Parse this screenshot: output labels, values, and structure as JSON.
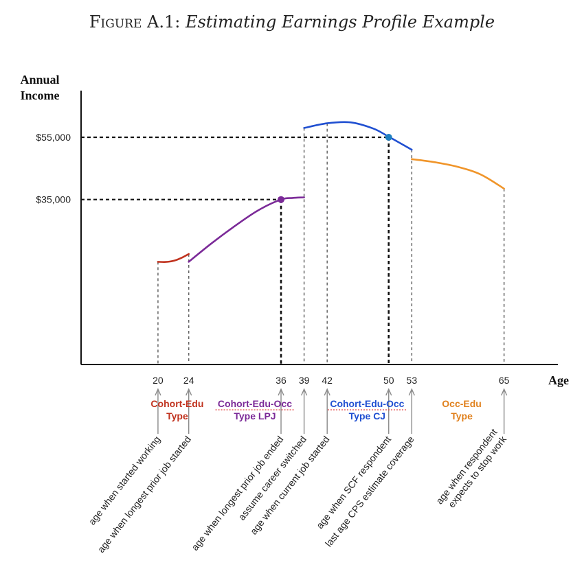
{
  "title": {
    "label": "Figure A.1:",
    "caption": "Estimating Earnings Profile Example"
  },
  "chart_data": {
    "type": "line",
    "ylabel_line1": "Annual",
    "ylabel_line2": "Income",
    "xlabel": "Age",
    "xlim": [
      10,
      72
    ],
    "ylim": [
      -18000,
      70000
    ],
    "x_ticks": [
      20,
      24,
      36,
      39,
      42,
      50,
      53,
      65
    ],
    "y_ticks": [
      {
        "value": 35000,
        "label": "$35,000"
      },
      {
        "value": 55000,
        "label": "$55,000"
      }
    ],
    "series": [
      {
        "color": "#c0321e",
        "points": [
          [
            20,
            15000
          ],
          [
            21,
            14950
          ],
          [
            22,
            15300
          ],
          [
            23,
            16200
          ],
          [
            24,
            17500
          ]
        ]
      },
      {
        "color": "#7b2a98",
        "points": [
          [
            24,
            15000
          ],
          [
            27,
            21000
          ],
          [
            30,
            26500
          ],
          [
            33,
            31500
          ],
          [
            36,
            35000
          ],
          [
            37.5,
            35500
          ],
          [
            39,
            35700
          ]
        ]
      },
      {
        "color": "#1f4fd1",
        "points": [
          [
            39,
            58000
          ],
          [
            42,
            59500
          ],
          [
            45,
            59800
          ],
          [
            48,
            57800
          ],
          [
            50,
            55200
          ],
          [
            53,
            51000
          ]
        ]
      },
      {
        "color": "#f0952a",
        "points": [
          [
            53,
            48000
          ],
          [
            56,
            47000
          ],
          [
            59,
            45500
          ],
          [
            62,
            43000
          ],
          [
            65,
            38500
          ]
        ]
      }
    ],
    "markers": [
      {
        "x": 36,
        "y": 35000,
        "color": "#7b2a98"
      },
      {
        "x": 50,
        "y": 55000,
        "color": "#1f7fc0"
      }
    ],
    "ref_lines": [
      {
        "x": 36,
        "y": 35000
      },
      {
        "x": 50,
        "y": 55000
      }
    ],
    "segments": [
      {
        "line1": "Cohort-Edu",
        "line2": "Type",
        "color": "#c0321e",
        "center_x": 22.5,
        "underline": false
      },
      {
        "line1": "Cohort-Edu-Occ",
        "line2": "Type LPJ",
        "color": "#7b2a98",
        "center_x": 32.6,
        "underline": true
      },
      {
        "line1": "Cohort-Edu-Occ",
        "line2": "Type CJ",
        "color": "#1f4fd1",
        "center_x": 47.2,
        "underline": true
      },
      {
        "line1": "Occ-Edu",
        "line2": "Type",
        "color": "#e0801c",
        "center_x": 59.5,
        "underline": false
      }
    ],
    "annotations": [
      {
        "x": 20,
        "lines": [
          "age when started working"
        ]
      },
      {
        "x": 24,
        "lines": [
          "age when longest prior job started"
        ]
      },
      {
        "x": 36,
        "lines": [
          "age when longest prior job ended"
        ]
      },
      {
        "x": 39,
        "lines": [
          "assume career switched"
        ]
      },
      {
        "x": 42,
        "lines": [
          "age when current job started"
        ]
      },
      {
        "x": 50,
        "lines": [
          "age when SCF respondent"
        ]
      },
      {
        "x": 53,
        "lines": [
          "last age CPS estimate coverage"
        ]
      },
      {
        "x": 65,
        "lines": [
          "age when respondent",
          "expects to stop work"
        ]
      }
    ]
  }
}
